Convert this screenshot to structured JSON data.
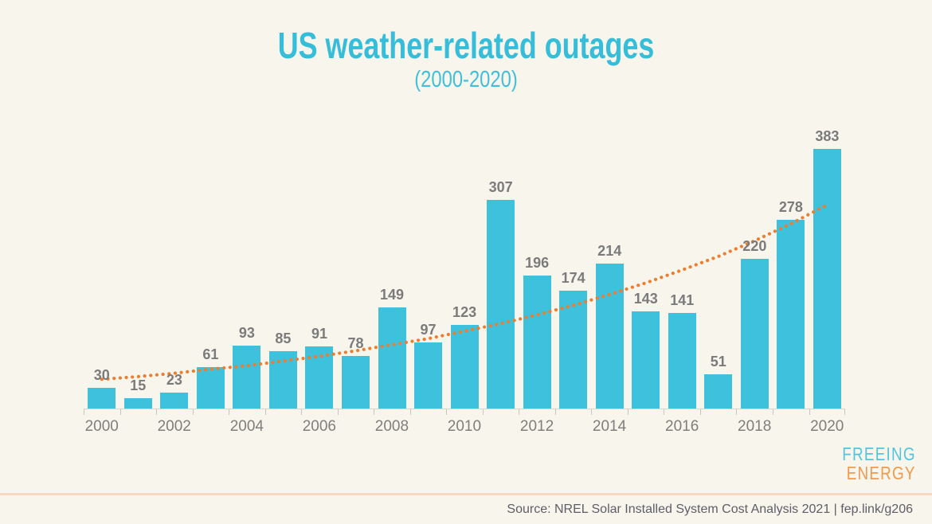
{
  "title": {
    "text": "US weather-related outages",
    "subtitle": "(2000-2020)",
    "color": "#35bdd9"
  },
  "chart_data": {
    "type": "bar",
    "title": "US weather-related outages",
    "subtitle": "(2000-2020)",
    "categories": [
      2000,
      2001,
      2002,
      2003,
      2004,
      2005,
      2006,
      2007,
      2008,
      2009,
      2010,
      2011,
      2012,
      2013,
      2014,
      2015,
      2016,
      2017,
      2018,
      2019,
      2020
    ],
    "values": [
      30,
      15,
      23,
      61,
      93,
      85,
      91,
      78,
      149,
      97,
      123,
      307,
      196,
      174,
      214,
      143,
      141,
      51,
      220,
      278,
      383
    ],
    "x_tick_labels": [
      "2000",
      "2002",
      "2004",
      "2006",
      "2008",
      "2010",
      "2012",
      "2014",
      "2016",
      "2018",
      "2020"
    ],
    "xlabel": "",
    "ylabel": "",
    "ylim": [
      0,
      400
    ],
    "grid": false,
    "legend": "none",
    "bar_color": "#3ec1dc",
    "value_label_color": "#7b7b7b",
    "trend": {
      "type": "exponential",
      "style": "dotted",
      "color": "#ed7d2f",
      "values": [
        43,
        47,
        52,
        58,
        63,
        70,
        77,
        85,
        94,
        103,
        114,
        125,
        138,
        152,
        168,
        185,
        204,
        224,
        247,
        272,
        300
      ]
    }
  },
  "footer": {
    "logo": {
      "line1": "FREEING",
      "line2": "ENERGY",
      "color1": "#52c5dc",
      "color2": "#f2994a"
    },
    "source_text": "Source: NREL Solar Installed System Cost Analysis 2021 | fep.link/g206"
  }
}
